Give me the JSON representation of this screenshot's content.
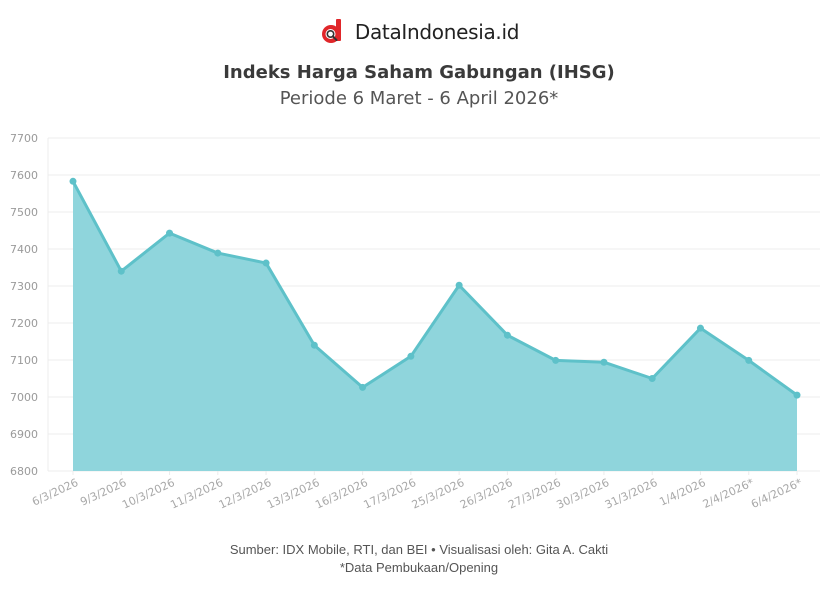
{
  "brand": {
    "name": "DataIndonesia.id",
    "logo_icon": "dataindonesia-logo-icon",
    "logo_color": "#e0262a"
  },
  "header": {
    "title": "Indeks Harga Saham Gabungan (IHSG)",
    "subtitle": "Periode 6 Maret - 6 April 2026*"
  },
  "footer": {
    "source": "Sumber: IDX Mobile, RTI, dan BEI • Visualisasi oleh: Gita A. Cakti",
    "note": "*Data Pembukaan/Opening"
  },
  "colors": {
    "area_fill": "#8fd5dc",
    "line": "#5ec1c9",
    "grid": "#ececec",
    "axis_text": "#a0a0a0"
  },
  "chart_data": {
    "type": "area",
    "title": "Indeks Harga Saham Gabungan (IHSG)",
    "subtitle": "Periode 6 Maret - 6 April 2026*",
    "xlabel": "",
    "ylabel": "",
    "ylim": [
      6800,
      7700
    ],
    "yticks": [
      6800,
      6900,
      7000,
      7100,
      7200,
      7300,
      7400,
      7500,
      7600,
      7700
    ],
    "grid": true,
    "legend": null,
    "categories": [
      "6/3/2026",
      "9/3/2026",
      "10/3/2026",
      "11/3/2026",
      "12/3/2026",
      "13/3/2026",
      "16/3/2026",
      "17/3/2026",
      "25/3/2026",
      "26/3/2026",
      "27/3/2026",
      "30/3/2026",
      "31/3/2026",
      "1/4/2026",
      "2/4/2026*",
      "6/4/2026*"
    ],
    "series": [
      {
        "name": "IHSG",
        "values": [
          7583,
          7340,
          7443,
          7389,
          7362,
          7140,
          7026,
          7110,
          7302,
          7167,
          7099,
          7094,
          7050,
          7186,
          7099,
          7005
        ]
      }
    ],
    "annotations": [
      "*Data Pembukaan/Opening"
    ]
  }
}
